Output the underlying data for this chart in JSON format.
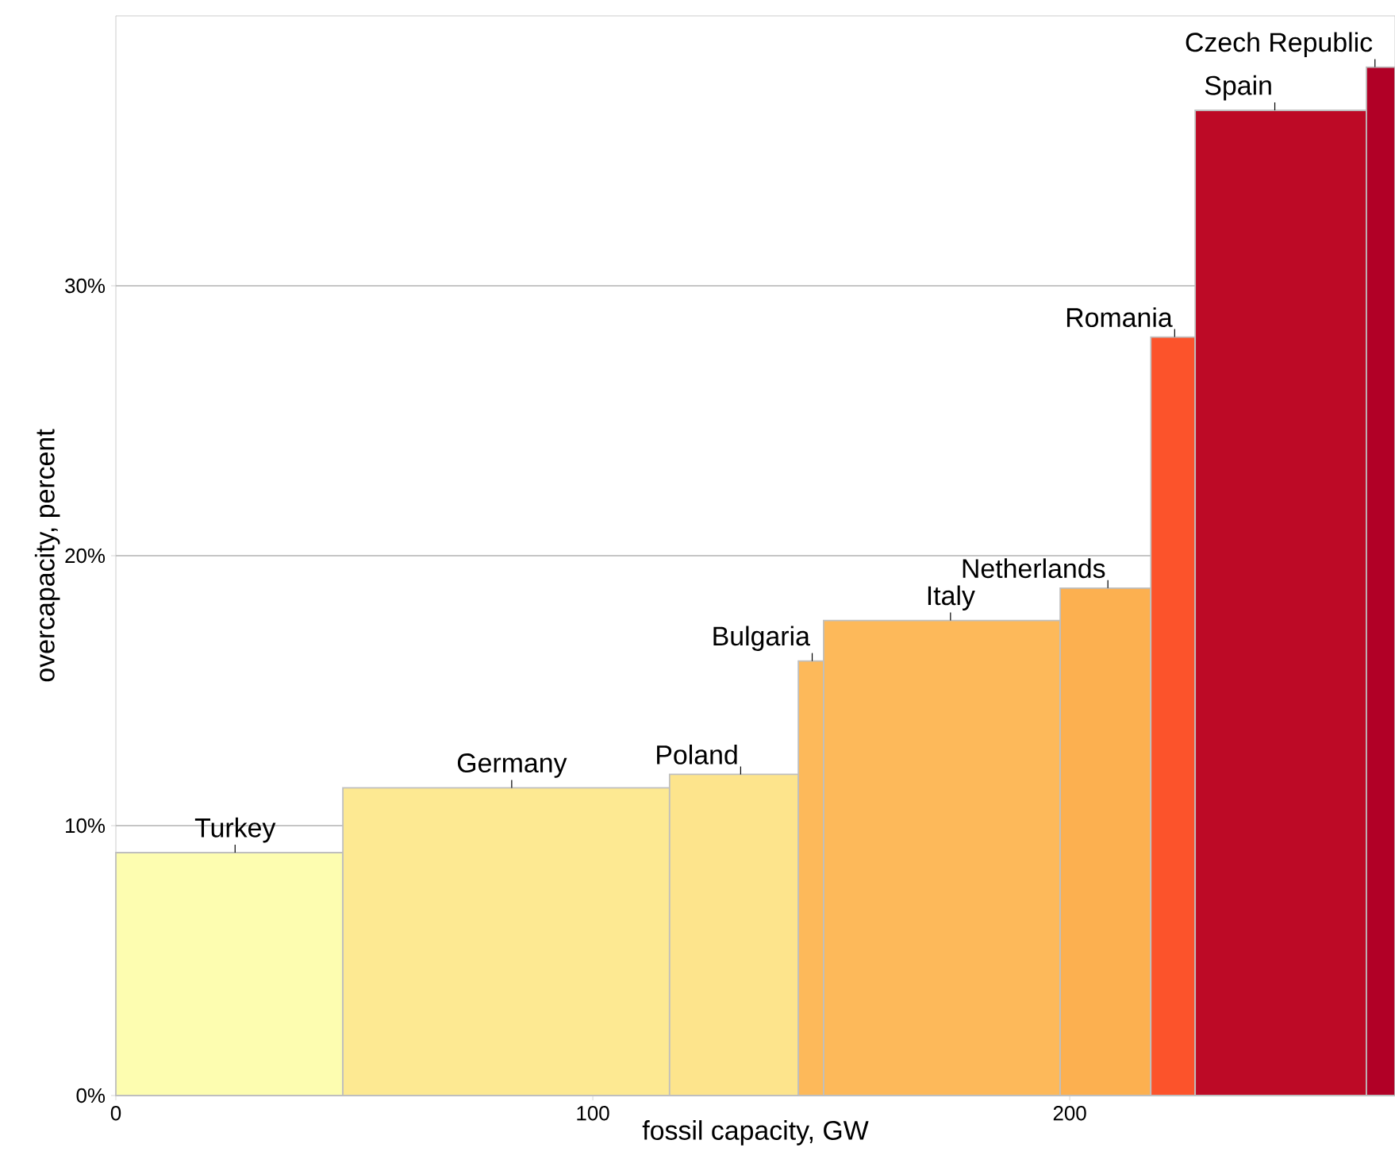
{
  "chart_data": {
    "type": "histogram",
    "xlabel": "fossil capacity, GW",
    "ylabel": "overcapacity, percent",
    "bins": [
      0,
      47.6,
      116.1,
      143.1,
      148.4,
      198.0,
      217.0,
      226.3,
      262.2,
      268.2
    ],
    "values": [
      9.0,
      11.4,
      11.9,
      16.1,
      17.6,
      18.8,
      28.1,
      36.5,
      38.1
    ],
    "colors": [
      "#fdfdb0",
      "#fde992",
      "#fde48c",
      "#fdb95a",
      "#fdb95a",
      "#fcb050",
      "#fc532b",
      "#bd0a26",
      "#b10026"
    ],
    "xlim": [
      0,
      268.2
    ],
    "ylim": [
      0,
      40
    ],
    "xticks": [
      0,
      100,
      200
    ],
    "yticks": [
      {
        "value": 0,
        "label": "0%"
      },
      {
        "value": 10,
        "label": "10%"
      },
      {
        "value": 20,
        "label": "20%"
      },
      {
        "value": 30,
        "label": "30%"
      }
    ],
    "grid": "y",
    "annotations": [
      {
        "text": "Turkey",
        "x": 25,
        "y": 9.0
      },
      {
        "text": "Germany",
        "x": 83,
        "y": 11.4
      },
      {
        "text": "Poland",
        "x": 131,
        "y": 11.9
      },
      {
        "text": "Bulgaria",
        "x": 146,
        "y": 16.1
      },
      {
        "text": "Italy",
        "x": 175,
        "y": 17.6
      },
      {
        "text": "Netherlands",
        "x": 208,
        "y": 18.8
      },
      {
        "text": "Romania",
        "x": 222,
        "y": 28.1
      },
      {
        "text": "Spain",
        "x": 243,
        "y": 36.5
      },
      {
        "text": "Czech Republic",
        "x": 264,
        "y": 38.1
      }
    ]
  }
}
